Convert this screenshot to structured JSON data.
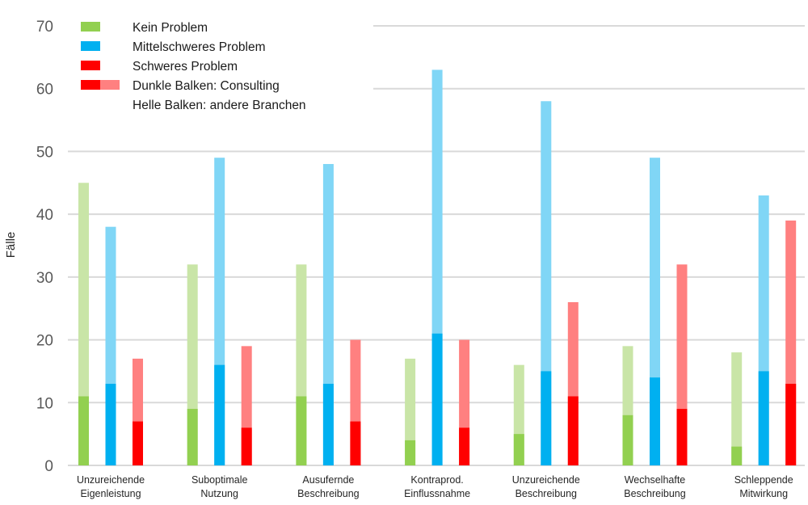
{
  "chart_data": {
    "type": "bar",
    "title": "",
    "xlabel": "",
    "ylabel": "Fälle",
    "ylim": [
      0,
      70
    ],
    "yticks": [
      0,
      10,
      20,
      30,
      40,
      50,
      60,
      70
    ],
    "grid": true,
    "legend_position": "top-left",
    "categories": [
      [
        "Unzureichende",
        "Eigenleistung"
      ],
      [
        "Suboptimale",
        "Nutzung"
      ],
      [
        "Ausufernde",
        "Beschreibung"
      ],
      [
        "Kontraprod.",
        "Einflussnahme"
      ],
      [
        "Unzureichende",
        "Beschreibung"
      ],
      [
        "Wechselhafte",
        "Beschreibung"
      ],
      [
        "Schleppende",
        "Mitwirkung"
      ]
    ],
    "series": [
      {
        "name": "Kein Problem",
        "color_dark": "#92d050",
        "color_light": "#c9e5a7",
        "consulting": [
          11,
          9,
          11,
          4,
          5,
          8,
          3
        ],
        "andere_branchen": [
          45,
          32,
          32,
          17,
          16,
          19,
          18
        ]
      },
      {
        "name": "Mittelschweres Problem",
        "color_dark": "#00b0f0",
        "color_light": "#80d6f6",
        "consulting": [
          13,
          16,
          13,
          21,
          15,
          14,
          15
        ],
        "andere_branchen": [
          38,
          49,
          48,
          63,
          58,
          49,
          43
        ]
      },
      {
        "name": "Schweres Problem",
        "color_dark": "#ff0000",
        "color_light": "#ff8080",
        "consulting": [
          7,
          6,
          7,
          6,
          11,
          9,
          13
        ],
        "andere_branchen": [
          17,
          19,
          20,
          20,
          26,
          32,
          39
        ]
      }
    ],
    "legend": {
      "items": [
        {
          "label": "Kein Problem",
          "swatch": [
            "#92d050"
          ]
        },
        {
          "label": "Mittelschweres Problem",
          "swatch": [
            "#00b0f0"
          ]
        },
        {
          "label": "Schweres Problem",
          "swatch": [
            "#ff0000"
          ]
        },
        {
          "label": "Dunkle Balken: Consulting",
          "swatch": [
            "#ff0000",
            "#ff8080"
          ]
        },
        {
          "label": "Helle Balken: andere Branchen",
          "swatch": []
        }
      ]
    }
  }
}
